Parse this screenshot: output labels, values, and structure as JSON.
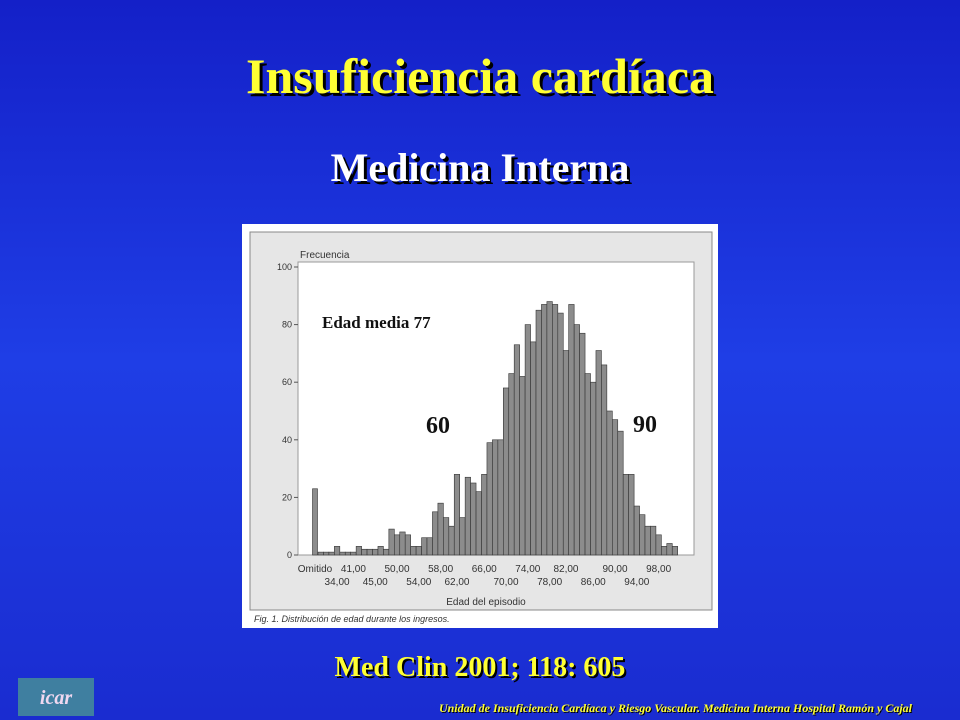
{
  "slide_title": "Insuficiencia cardíaca",
  "slide_subtitle": "Medicina Interna",
  "citation": "Med Clin 2001; 118: 605",
  "footer": "Unidad de Insuficiencia Cardíaca y Riesgo Vascular. Medicina Interna Hospital Ramón y Cajal",
  "logo": "icar",
  "chart_data": {
    "type": "bar",
    "y_label": "Frecuencia",
    "x_label": "Edad del episodio",
    "caption": "Fig. 1. Distribución de edad durante los ingresos.",
    "annotations": [
      "Edad media 77",
      "60",
      "90"
    ],
    "color": "#8c8c8c",
    "categories": [
      "Omitido",
      null,
      null,
      null,
      "34,00",
      null,
      null,
      "41,00",
      null,
      null,
      null,
      "45,00",
      null,
      null,
      null,
      "50,00",
      null,
      null,
      null,
      "54,00",
      null,
      null,
      null,
      "58,00",
      null,
      null,
      "62,00",
      null,
      null,
      null,
      null,
      "66,00",
      null,
      null,
      null,
      "70,00",
      null,
      null,
      null,
      "74,00",
      null,
      null,
      null,
      "78,00",
      null,
      null,
      "82,00",
      null,
      null,
      null,
      null,
      "86,00",
      null,
      null,
      null,
      "90,00",
      null,
      null,
      null,
      "94,00",
      null,
      null,
      null,
      "98,00",
      null,
      null,
      null
    ],
    "values": [
      23,
      1,
      1,
      1,
      3,
      1,
      1,
      1,
      3,
      2,
      2,
      2,
      3,
      2,
      9,
      7,
      8,
      7,
      3,
      3,
      6,
      6,
      15,
      18,
      13,
      10,
      28,
      13,
      27,
      25,
      22,
      28,
      39,
      40,
      40,
      58,
      63,
      73,
      62,
      80,
      74,
      85,
      87,
      88,
      87,
      84,
      71,
      87,
      80,
      77,
      63,
      60,
      71,
      66,
      50,
      47,
      43,
      28,
      28,
      17,
      14,
      10,
      10,
      7,
      3,
      4,
      3
    ],
    "ylim": [
      0,
      100
    ],
    "yticks": [
      0,
      20,
      40,
      60,
      80,
      100
    ]
  }
}
